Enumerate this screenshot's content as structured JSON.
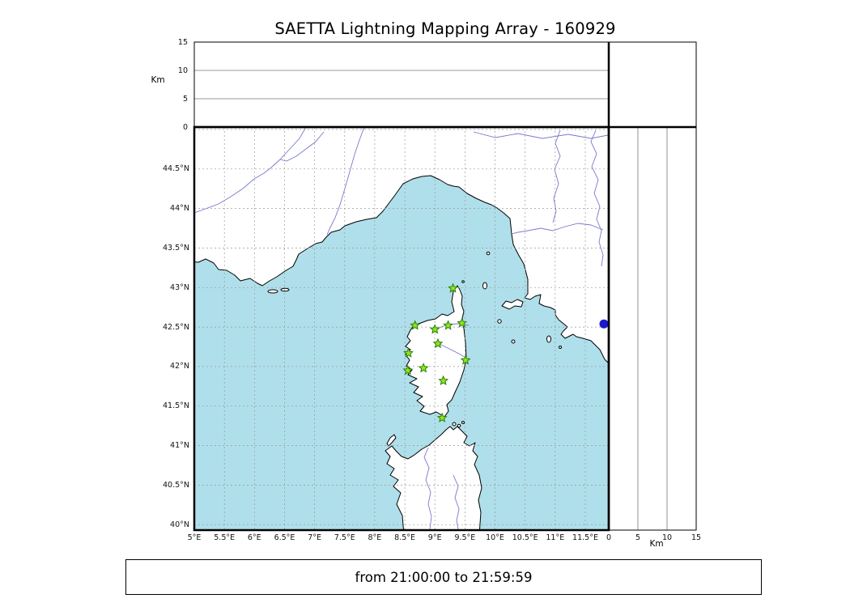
{
  "title": "SAETTA Lightning Mapping Array - 160929",
  "footer_text": "from 21:00:00 to 21:59:59",
  "axes": {
    "km_label": "Km",
    "km_ticks": [
      "0",
      "5",
      "10",
      "15"
    ],
    "lat_ticks": [
      "40°N",
      "40.5°N",
      "41°N",
      "41.5°N",
      "42°N",
      "42.5°N",
      "43°N",
      "43.5°N",
      "44°N",
      "44.5°N"
    ],
    "lon_ticks": [
      "5°E",
      "5.5°E",
      "6°E",
      "6.5°E",
      "7°E",
      "7.5°E",
      "8°E",
      "8.5°E",
      "9°E",
      "9.5°E",
      "10°E",
      "10.5°E",
      "11°E",
      "11.5°E"
    ]
  },
  "chart_data": {
    "type": "scatter",
    "title": "SAETTA Lightning Mapping Array - 160929",
    "time_window": "from 21:00:00 to 21:59:59",
    "map_panel": {
      "lon_range_deg_e": [
        5.0,
        11.9
      ],
      "lat_range_deg_n": [
        39.93,
        45.03
      ],
      "grid_step_deg": 0.5,
      "stations_lon_lat": [
        [
          9.3,
          42.99
        ],
        [
          8.67,
          42.52
        ],
        [
          9.0,
          42.47
        ],
        [
          9.22,
          42.52
        ],
        [
          9.45,
          42.55
        ],
        [
          9.05,
          42.29
        ],
        [
          8.56,
          42.17
        ],
        [
          9.51,
          42.08
        ],
        [
          8.55,
          41.95
        ],
        [
          8.81,
          41.98
        ],
        [
          9.14,
          41.82
        ],
        [
          9.12,
          41.35
        ]
      ],
      "source_point_lon_lat": [
        11.81,
        42.54
      ]
    },
    "altitude_panels": {
      "axis_label": "Km",
      "range_km": [
        0,
        15
      ],
      "ticks_km": [
        0,
        5,
        10,
        15
      ],
      "grid_km": [
        5,
        10
      ],
      "points": []
    }
  },
  "colors": {
    "sea": "#afdfea",
    "land": "#ffffff",
    "coastline": "#000000",
    "river": "#7878cf",
    "grid_dash": "#999999",
    "panel_grid": "#777777",
    "station_fill": "#8ce61e",
    "station_edge": "#2e7d0a",
    "source_dot": "#1a1acd"
  }
}
